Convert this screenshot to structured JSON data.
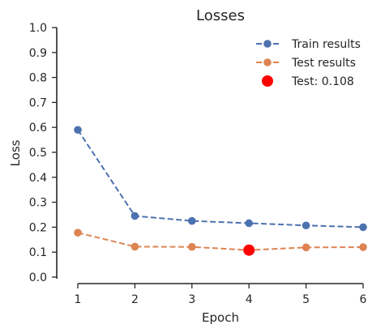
{
  "chart_data": {
    "type": "line",
    "title": "Losses",
    "xlabel": "Epoch",
    "ylabel": "Loss",
    "x": [
      1,
      2,
      3,
      4,
      5,
      6
    ],
    "xlim": [
      1,
      6
    ],
    "ylim": [
      0.0,
      1.0
    ],
    "x_ticks": [
      "1",
      "2",
      "3",
      "4",
      "5",
      "6"
    ],
    "y_ticks": [
      "0.0",
      "0.1",
      "0.2",
      "0.3",
      "0.4",
      "0.5",
      "0.6",
      "0.7",
      "0.8",
      "0.9",
      "1.0"
    ],
    "grid": false,
    "legend_position": "top-right",
    "series": [
      {
        "name": "Train results",
        "color": "#4c72b0",
        "line_style": "dashed",
        "marker": "circle",
        "values": [
          0.59,
          0.245,
          0.225,
          0.216,
          0.207,
          0.2
        ]
      },
      {
        "name": "Test results",
        "color": "#dd8452",
        "line_style": "dashed",
        "marker": "circle",
        "values": [
          0.178,
          0.122,
          0.121,
          0.108,
          0.119,
          0.12
        ]
      }
    ],
    "highlight": {
      "name": "Test: 0.108",
      "color": "#ff0000",
      "x": 4,
      "y": 0.108
    }
  }
}
